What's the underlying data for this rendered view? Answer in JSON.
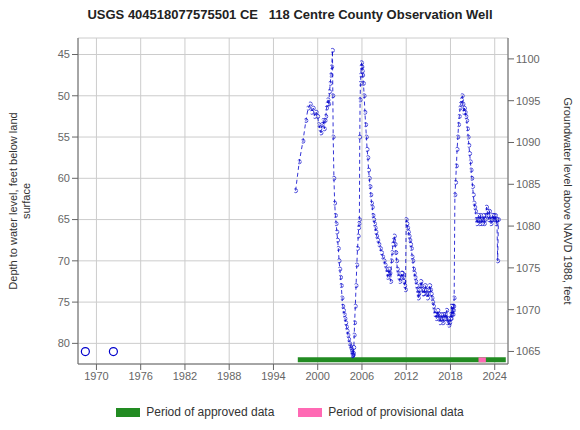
{
  "chart_data": {
    "type": "line",
    "title": "USGS 404518077575501 CE   118 Centre County Observation Well",
    "ylabel": "Depth to water level, feet below land\nsurface",
    "y2label": "Groundwater level above NAVD 1988, feet",
    "xlim": [
      1967.5,
      2025.8
    ],
    "xticks": [
      1970,
      1976,
      1982,
      1988,
      1994,
      2000,
      2006,
      2012,
      2018,
      2024
    ],
    "ylim": [
      82.5,
      43.0
    ],
    "yticks": [
      45,
      50,
      55,
      60,
      65,
      70,
      75,
      80
    ],
    "y2lim": [
      1063.5,
      1102.5
    ],
    "y2ticks": [
      1065,
      1070,
      1075,
      1080,
      1085,
      1090,
      1095,
      1100
    ],
    "grid": true,
    "legend": "bottom",
    "series": [
      {
        "type": "scatter",
        "color": "#0000CC",
        "marker": "circle",
        "x": [
          1968.5,
          1972.3
        ],
        "values": [
          81.0,
          81.0
        ]
      },
      {
        "type": "line",
        "color": "#0000CC",
        "marker": "circle",
        "line_style": "dashed",
        "x": [
          1997.0,
          1997.5,
          1998.0,
          1998.4,
          1998.7,
          1999.0,
          1999.2,
          1999.4,
          1999.6,
          1999.8,
          2000.0,
          2000.15,
          2000.3,
          2000.45,
          2000.6,
          2000.75,
          2000.9,
          2001.0,
          2001.1,
          2001.2,
          2001.3,
          2001.4,
          2001.5,
          2001.6,
          2001.7,
          2001.8,
          2001.9,
          2002.0,
          2002.05,
          2002.1,
          2002.2,
          2002.3,
          2002.4,
          2002.5,
          2002.6,
          2002.7,
          2002.8,
          2002.9,
          2003.0,
          2003.1,
          2003.2,
          2003.3,
          2003.4,
          2003.5,
          2003.6,
          2003.7,
          2003.8,
          2003.9,
          2004.0,
          2004.1,
          2004.2,
          2004.3,
          2004.4,
          2004.5,
          2004.55,
          2004.6,
          2004.65,
          2004.7,
          2004.75,
          2004.8,
          2004.85,
          2004.9,
          2004.95,
          2005.0,
          2005.1,
          2005.2,
          2005.3,
          2005.4,
          2005.5,
          2005.55,
          2005.6,
          2005.65,
          2005.7,
          2005.75,
          2005.8,
          2005.85,
          2005.9,
          2005.95,
          2006.0,
          2006.05,
          2006.1,
          2006.2,
          2006.3,
          2006.4,
          2006.5,
          2006.6,
          2006.7,
          2006.8,
          2006.9,
          2007.0,
          2007.1,
          2007.2,
          2007.3,
          2007.4,
          2007.5,
          2007.6,
          2007.7,
          2007.8,
          2007.9,
          2008.0,
          2008.15,
          2008.3,
          2008.5,
          2008.65,
          2008.8,
          2009.0,
          2009.15,
          2009.3,
          2009.45,
          2009.5,
          2009.6,
          2009.7,
          2009.8,
          2009.9,
          2010.0,
          2010.1,
          2010.2,
          2010.3,
          2010.4,
          2010.5,
          2010.6,
          2010.7,
          2010.8,
          2010.9,
          2011.0,
          2011.15,
          2011.3,
          2011.4,
          2011.5,
          2011.6,
          2011.7,
          2011.8,
          2011.9,
          2012.0,
          2012.1,
          2012.2,
          2012.3,
          2012.4,
          2012.5,
          2012.6,
          2012.7,
          2012.8,
          2012.9,
          2013.0,
          2013.1,
          2013.2,
          2013.3,
          2013.4,
          2013.5,
          2013.6,
          2013.65,
          2013.7,
          2013.8,
          2013.9,
          2014.0,
          2014.1,
          2014.2,
          2014.3,
          2014.4,
          2014.5,
          2014.6,
          2014.7,
          2014.8,
          2014.9,
          2015.0,
          2015.1,
          2015.2,
          2015.3,
          2015.4,
          2015.5,
          2015.6,
          2015.7,
          2015.8,
          2015.9,
          2016.0,
          2016.1,
          2016.2,
          2016.3,
          2016.4,
          2016.5,
          2016.6,
          2016.7,
          2016.8,
          2016.9,
          2017.0,
          2017.1,
          2017.2,
          2017.3,
          2017.4,
          2017.5,
          2017.6,
          2017.7,
          2017.8,
          2017.9,
          2018.0,
          2018.05,
          2018.1,
          2018.15,
          2018.2,
          2018.25,
          2018.3,
          2018.35,
          2018.4,
          2018.45,
          2018.5,
          2018.6,
          2018.7,
          2018.8,
          2018.9,
          2019.0,
          2019.1,
          2019.2,
          2019.3,
          2019.4,
          2019.5,
          2019.6,
          2019.7,
          2019.8,
          2019.9,
          2020.0,
          2020.1,
          2020.2,
          2020.3,
          2020.4,
          2020.5,
          2020.6,
          2020.7,
          2020.8,
          2020.9,
          2021.0,
          2021.1,
          2021.2,
          2021.3,
          2021.4,
          2021.5,
          2021.6,
          2021.7,
          2021.8,
          2021.9,
          2022.0,
          2022.1,
          2022.2,
          2022.3,
          2022.4,
          2022.5,
          2022.6,
          2022.7,
          2022.8,
          2022.9,
          2023.0,
          2023.1,
          2023.2,
          2023.3,
          2023.4,
          2023.5,
          2023.6,
          2023.7,
          2023.8,
          2023.9,
          2024.0,
          2024.1,
          2024.2,
          2024.3,
          2024.4,
          2024.5
        ],
        "values": [
          61.5,
          58.0,
          55.5,
          53.0,
          51.5,
          51.0,
          52.0,
          51.5,
          52.5,
          52.0,
          52.5,
          53.5,
          54.0,
          54.5,
          53.5,
          53.0,
          54.0,
          53.0,
          52.5,
          51.5,
          51.0,
          50.5,
          51.0,
          49.5,
          48.5,
          47.5,
          46.5,
          44.5,
          50.0,
          55.0,
          60.0,
          63.0,
          64.5,
          65.5,
          66.5,
          67.5,
          68.5,
          70.0,
          71.0,
          72.0,
          73.0,
          74.5,
          75.5,
          76.0,
          76.5,
          77.0,
          77.5,
          78.0,
          78.5,
          79.0,
          79.5,
          80.0,
          80.3,
          80.5,
          80.7,
          81.0,
          81.2,
          81.4,
          81.5,
          81.4,
          81.2,
          80.5,
          79.0,
          77.5,
          75.5,
          73.0,
          70.5,
          68.5,
          67.0,
          66.0,
          65.5,
          65.0,
          55.0,
          50.5,
          48.5,
          47.5,
          46.5,
          46.0,
          46.5,
          47.0,
          47.5,
          48.5,
          50.0,
          52.0,
          53.5,
          55.0,
          56.5,
          57.5,
          59.0,
          60.0,
          61.0,
          62.0,
          63.0,
          63.5,
          64.5,
          65.0,
          65.5,
          66.0,
          66.5,
          67.0,
          67.5,
          68.0,
          68.5,
          69.0,
          69.5,
          70.0,
          70.5,
          71.0,
          71.5,
          72.0,
          71.5,
          71.0,
          71.5,
          72.5,
          70.0,
          69.0,
          68.0,
          67.5,
          67.0,
          68.0,
          69.0,
          70.0,
          71.0,
          71.5,
          72.0,
          72.5,
          72.0,
          71.5,
          71.5,
          72.0,
          72.5,
          73.0,
          73.5,
          65.0,
          65.5,
          66.0,
          66.5,
          67.0,
          67.5,
          68.0,
          68.5,
          69.5,
          70.0,
          71.0,
          71.5,
          72.0,
          72.5,
          73.0,
          73.5,
          74.0,
          74.5,
          74.0,
          73.5,
          73.0,
          72.5,
          73.0,
          73.5,
          74.0,
          74.0,
          73.5,
          73.0,
          73.5,
          74.0,
          74.5,
          74.0,
          73.5,
          73.0,
          73.5,
          74.0,
          74.5,
          75.0,
          75.5,
          76.0,
          76.5,
          76.5,
          77.0,
          76.5,
          76.0,
          77.0,
          76.5,
          77.5,
          77.0,
          76.5,
          77.0,
          77.5,
          76.5,
          77.0,
          76.5,
          77.0,
          76.0,
          77.5,
          77.0,
          77.8,
          77.5,
          77.0,
          76.5,
          77.0,
          75.5,
          76.5,
          76.0,
          75.5,
          76.5,
          76.0,
          75.5,
          74.5,
          62.0,
          60.5,
          58.5,
          56.5,
          55.0,
          53.5,
          52.5,
          51.5,
          51.0,
          50.5,
          50.0,
          51.0,
          52.0,
          51.5,
          52.0,
          52.5,
          53.0,
          54.0,
          55.0,
          56.0,
          57.0,
          58.0,
          59.0,
          60.0,
          61.0,
          62.0,
          63.0,
          63.5,
          64.0,
          65.0,
          65.5,
          65.0,
          64.5,
          65.0,
          65.5,
          64.5,
          65.0,
          65.5,
          65.0,
          64.5,
          65.5,
          65.0,
          64.5,
          63.5,
          64.0,
          64.5,
          65.0,
          64.0,
          65.0,
          65.5,
          65.0,
          64.5,
          65.0,
          64.5,
          65.0,
          64.5,
          65.5,
          65.0,
          70.0,
          65.0
        ]
      }
    ],
    "periods": [
      {
        "name": "Period of approved data",
        "color": "#228B22",
        "x0": 1997.3,
        "x1": 2025.5,
        "y": 82.0
      },
      {
        "name": "Period of provisional data",
        "color": "#FF69B4",
        "x0": 2021.8,
        "x1": 2022.8,
        "y": 82.0
      }
    ]
  }
}
